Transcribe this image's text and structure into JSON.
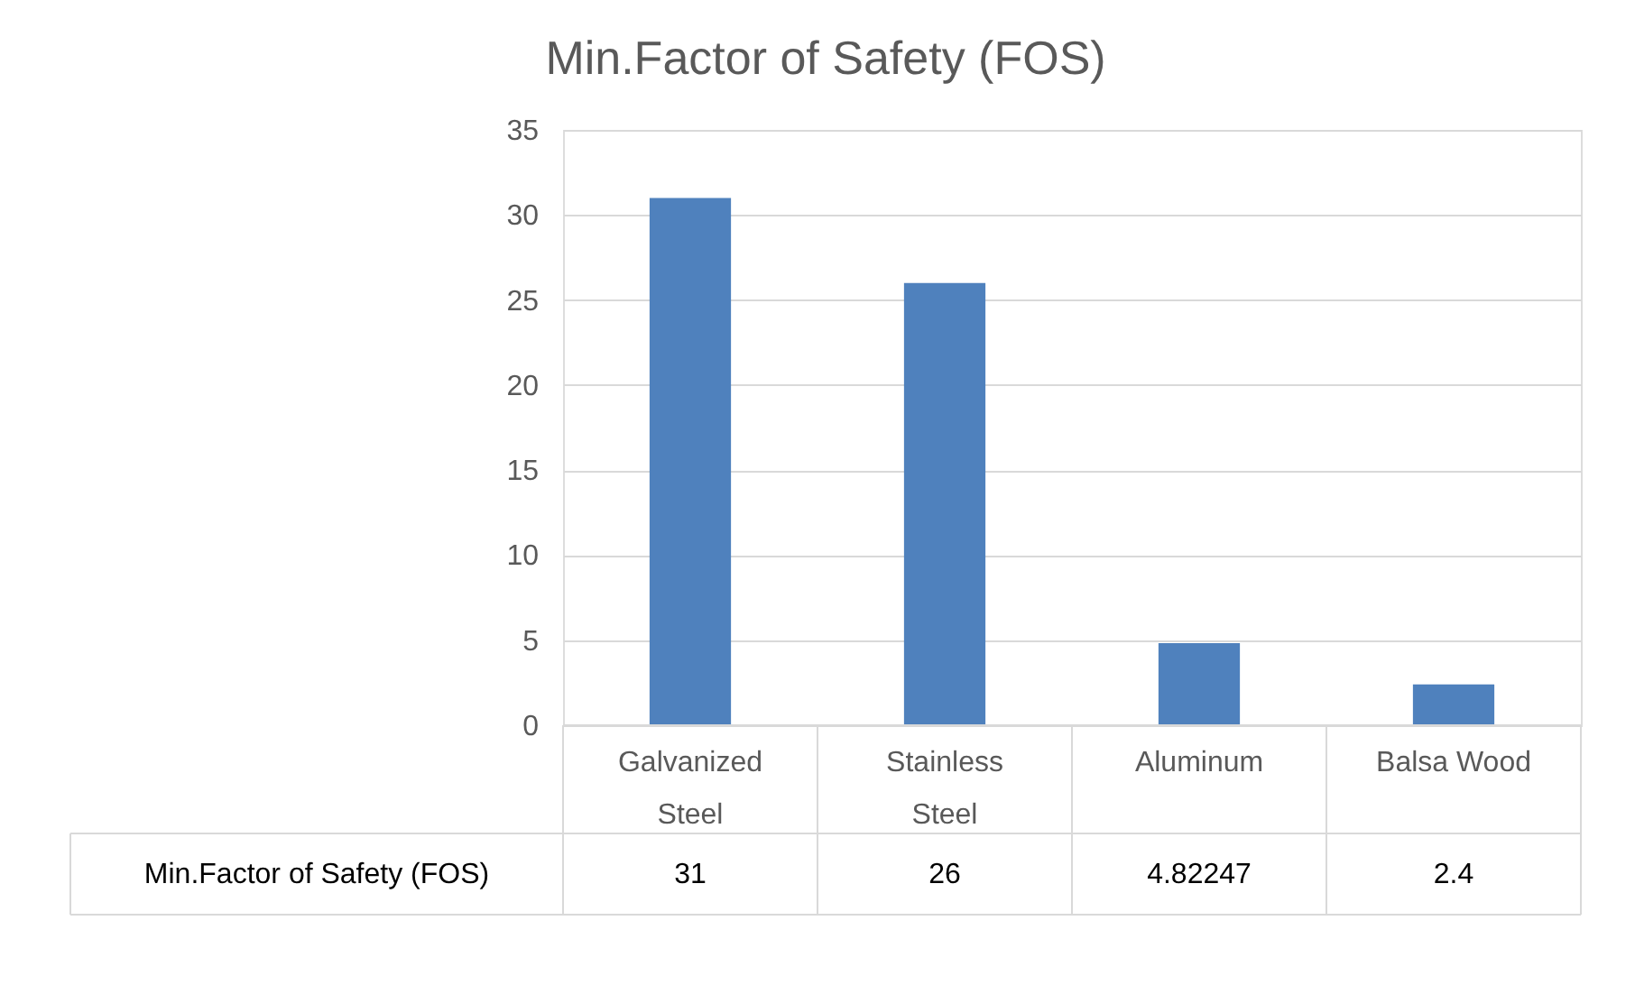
{
  "chart_data": {
    "type": "bar",
    "title": "Min.Factor of Safety (FOS)",
    "categories": [
      "Galvanized Steel",
      "Stainless Steel",
      "Aluminum",
      "Balsa Wood"
    ],
    "series": [
      {
        "name": "Min.Factor of Safety (FOS)",
        "color": "#4f81bd",
        "values": [
          31,
          26,
          4.82247,
          2.4
        ]
      }
    ],
    "ylim": [
      0,
      35
    ],
    "yticks": [
      0,
      5,
      10,
      15,
      20,
      25,
      30,
      35
    ],
    "grid": "y",
    "data_labels": true
  }
}
